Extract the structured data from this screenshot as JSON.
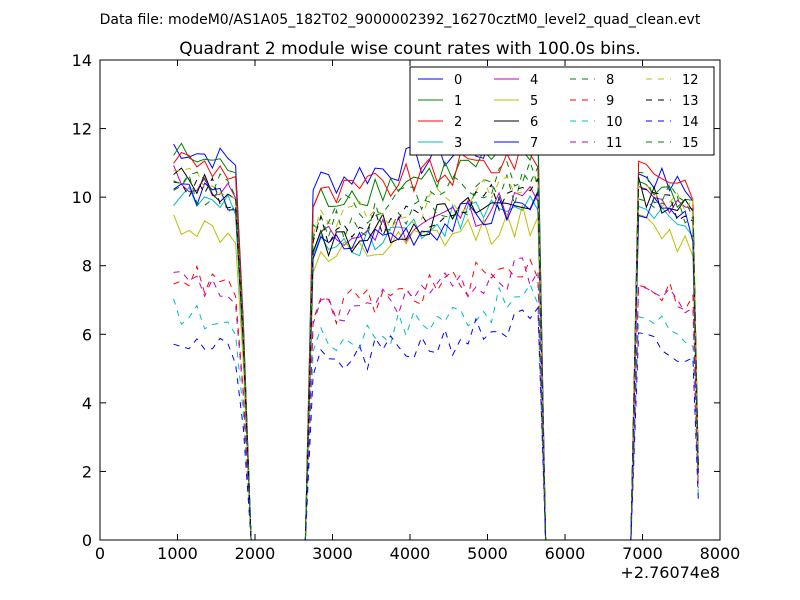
{
  "figure": {
    "suptitle": "Data file: modeM0/AS1A05_182T02_9000002392_16270cztM0_level2_quad_clean.evt"
  },
  "chart_data": {
    "type": "line",
    "title": "Quadrant 2 module wise count rates with 100.0s bins.",
    "xlabel": "",
    "ylabel": "",
    "x_offset_label": "+2.76074e8",
    "xlim": [
      0,
      8000
    ],
    "ylim": [
      0,
      14
    ],
    "xticks": [
      0,
      1000,
      2000,
      3000,
      4000,
      5000,
      6000,
      7000,
      8000
    ],
    "yticks": [
      0,
      2,
      4,
      6,
      8,
      10,
      12,
      14
    ],
    "grid": false,
    "legend_placement": "top-right",
    "legend_columns": 4,
    "segments": [
      {
        "x_start": 950,
        "step": 100,
        "count": 8,
        "tail": [
          1850,
          1950
        ]
      },
      {
        "x_start": 2650,
        "step": 100,
        "count": 0,
        "tail": []
      }
    ],
    "series": [
      {
        "name": "0",
        "color": "#0000ff",
        "style": "solid",
        "base": 11.5,
        "seg2": 10.4,
        "seg3": 10.8
      },
      {
        "name": "1",
        "color": "#008000",
        "style": "solid",
        "base": 11.3,
        "seg2": 9.9,
        "seg3": 10.5
      },
      {
        "name": "2",
        "color": "#ff0000",
        "style": "solid",
        "base": 11.2,
        "seg2": 9.9,
        "seg3": 11.0
      },
      {
        "name": "3",
        "color": "#00bfbf",
        "style": "solid",
        "base": 10.1,
        "seg2": 8.5,
        "seg3": 9.6
      },
      {
        "name": "4",
        "color": "#bf00bf",
        "style": "solid",
        "base": 10.6,
        "seg2": 8.6,
        "seg3": 10.1
      },
      {
        "name": "5",
        "color": "#bfbf00",
        "style": "solid",
        "base": 9.3,
        "seg2": 8.0,
        "seg3": 9.2
      },
      {
        "name": "6",
        "color": "#000000",
        "style": "solid",
        "base": 10.6,
        "seg2": 8.6,
        "seg3": 10.2
      },
      {
        "name": "7",
        "color": "#0000ff",
        "style": "solid",
        "base": 10.3,
        "seg2": 8.4,
        "seg3": 9.8
      },
      {
        "name": "8",
        "color": "#008000",
        "style": "dashed",
        "base": 10.4,
        "seg2": 9.0,
        "seg3": 10.2
      },
      {
        "name": "9",
        "color": "#ff0000",
        "style": "dashed",
        "base": 7.8,
        "seg2": 6.6,
        "seg3": 7.6
      },
      {
        "name": "10",
        "color": "#00bfbf",
        "style": "dashed",
        "base": 6.7,
        "seg2": 5.7,
        "seg3": 6.6
      },
      {
        "name": "11",
        "color": "#bf00bf",
        "style": "dashed",
        "base": 7.6,
        "seg2": 6.5,
        "seg3": 7.4
      },
      {
        "name": "12",
        "color": "#bfbf00",
        "style": "dashed",
        "base": 10.7,
        "seg2": 9.1,
        "seg3": 10.3
      },
      {
        "name": "13",
        "color": "#000000",
        "style": "dashed",
        "base": 10.5,
        "seg2": 8.9,
        "seg3": 10.1
      },
      {
        "name": "14",
        "color": "#0000ff",
        "style": "dashed",
        "base": 5.9,
        "seg2": 5.0,
        "seg3": 5.8
      },
      {
        "name": "15",
        "color": "#008000",
        "style": "dashed",
        "base": 10.8,
        "seg2": 9.4,
        "seg3": 10.4
      }
    ]
  }
}
